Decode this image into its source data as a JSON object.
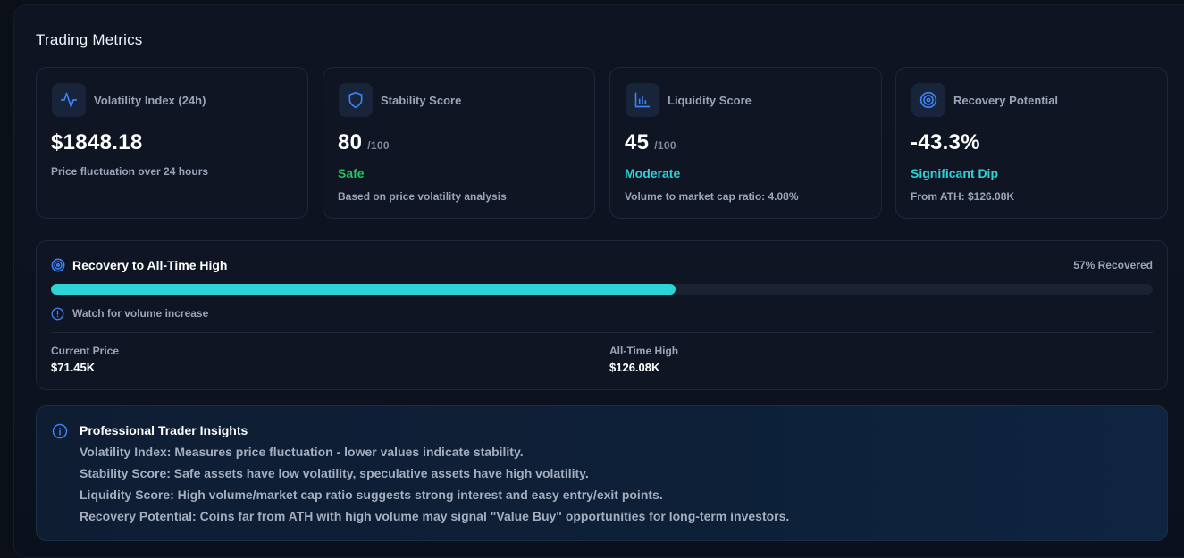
{
  "panel": {
    "title": "Trading Metrics"
  },
  "cards": [
    {
      "icon": "activity-icon",
      "label": "Volatility Index (24h)",
      "value": "$1848.18",
      "unit": "",
      "status": "",
      "description": "Price fluctuation over 24 hours"
    },
    {
      "icon": "shield-icon",
      "label": "Stability Score",
      "value": "80",
      "unit": "/100",
      "status": "Safe",
      "status_color": "#22c55e",
      "description": "Based on price volatility analysis"
    },
    {
      "icon": "bar-chart-icon",
      "label": "Liquidity Score",
      "value": "45",
      "unit": "/100",
      "status": "Moderate",
      "status_color": "#2ed3d6",
      "description": "Volume to market cap ratio: 4.08%"
    },
    {
      "icon": "target-icon",
      "label": "Recovery Potential",
      "value": "-43.3%",
      "unit": "",
      "status": "Significant Dip",
      "status_color": "#2ed3d6",
      "description": "From ATH: $126.08K"
    }
  ],
  "recovery": {
    "title": "Recovery to All-Time High",
    "percent_label": "57% Recovered",
    "progress_fraction": 0.567,
    "hint": "Watch for volume increase",
    "current_price_label": "Current Price",
    "current_price_value": "$71.45K",
    "ath_label": "All-Time High",
    "ath_value": "$126.08K"
  },
  "insights": {
    "title": "Professional Trader Insights",
    "lines": [
      "Volatility Index: Measures price fluctuation - lower values indicate stability.",
      "Stability Score: Safe assets have low volatility, speculative assets have high volatility.",
      "Liquidity Score: High volume/market cap ratio suggests strong interest and easy entry/exit points.",
      "Recovery Potential: Coins far from ATH with high volume may signal \"Value Buy\" opportunities for long-term investors."
    ]
  },
  "colors": {
    "accent_blue": "#3b82f6",
    "accent_cyan": "#2ed3d6",
    "safe_green": "#22c55e"
  }
}
